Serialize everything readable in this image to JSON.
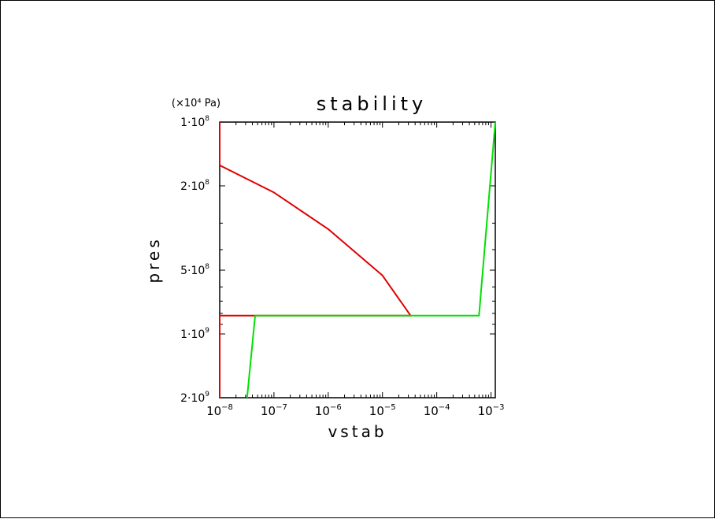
{
  "chart_data": {
    "type": "line",
    "title": "stability",
    "xlabel": "vstab",
    "ylabel": "pres",
    "yunit": "(×10⁴ Pa)",
    "x_scale": "log",
    "y_scale": "log",
    "y_inverted": true,
    "xlim": [
      1e-08,
      0.0012
    ],
    "ylim": [
      100000000.0,
      2000000000.0
    ],
    "x_tick_labels": [
      {
        "base": "10",
        "exp": "−8",
        "value": 1e-08
      },
      {
        "base": "10",
        "exp": "−7",
        "value": 1e-07
      },
      {
        "base": "10",
        "exp": "−6",
        "value": 1e-06
      },
      {
        "base": "10",
        "exp": "−5",
        "value": 1e-05
      },
      {
        "base": "10",
        "exp": "−4",
        "value": 0.0001
      },
      {
        "base": "10",
        "exp": "−3",
        "value": 0.001
      }
    ],
    "y_tick_labels": [
      {
        "mant": "1",
        "exp": "8",
        "value": 100000000.0
      },
      {
        "mant": "2",
        "exp": "8",
        "value": 200000000.0
      },
      {
        "mant": "5",
        "exp": "8",
        "value": 500000000.0
      },
      {
        "mant": "1",
        "exp": "9",
        "value": 1000000000.0
      },
      {
        "mant": "2",
        "exp": "9",
        "value": 2000000000.0
      }
    ],
    "grid": false,
    "series": [
      {
        "color": "#e00000",
        "points": [
          [
            1e-08,
            2000000000.0
          ],
          [
            1e-08,
            820000000.0
          ],
          [
            4.5e-08,
            820000000.0
          ],
          [
            4.5e-08,
            820000000.0
          ],
          [
            3.3e-05,
            820000000.0
          ],
          [
            1e-05,
            530000000.0
          ],
          [
            1e-06,
            320000000.0
          ],
          [
            1e-07,
            215000000.0
          ],
          [
            1e-08,
            160000000.0
          ],
          [
            1e-08,
            100000000.0
          ]
        ]
      },
      {
        "color": "#00e000",
        "points": [
          [
            3.2e-08,
            2000000000.0
          ],
          [
            4.5e-08,
            820000000.0
          ],
          [
            0.0006,
            820000000.0
          ],
          [
            0.0012,
            100000000.0
          ]
        ]
      }
    ]
  }
}
